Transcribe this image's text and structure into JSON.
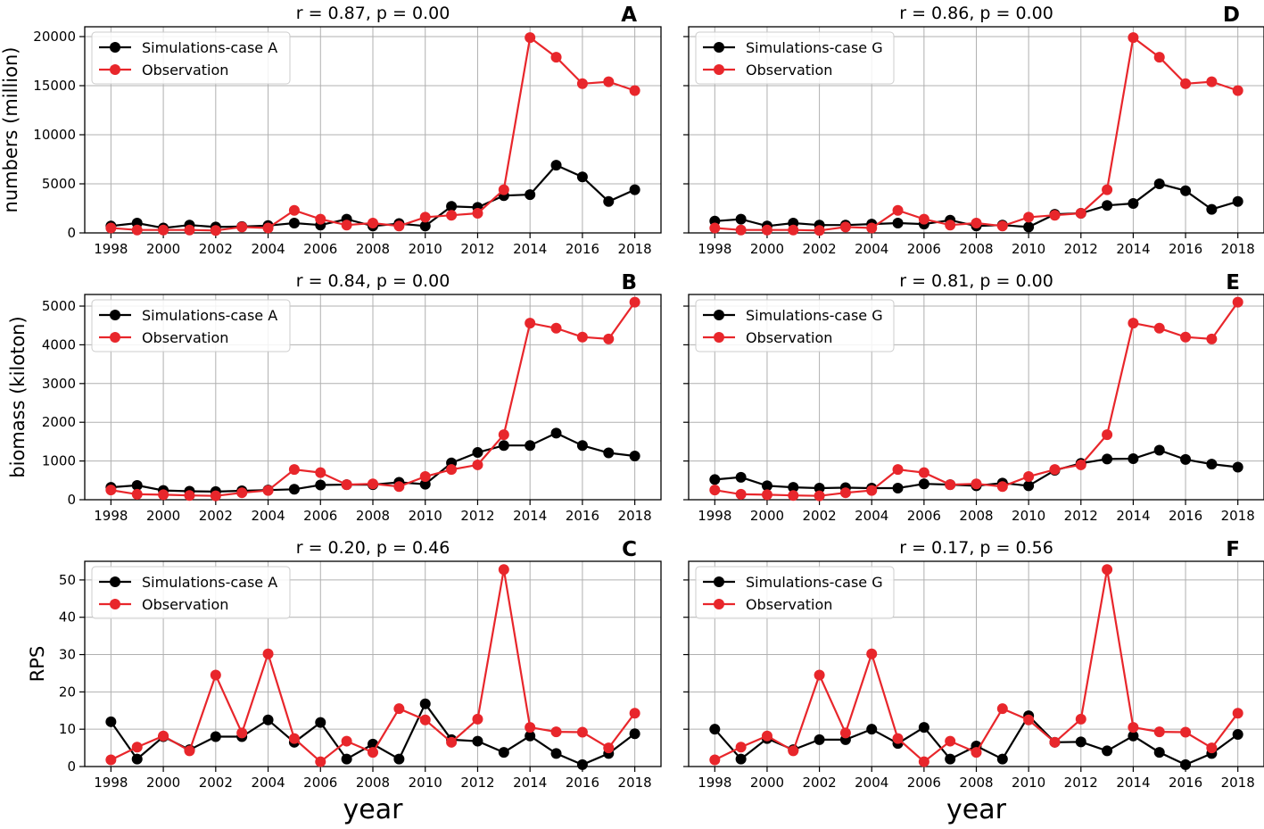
{
  "colors": {
    "simulation": "#000000",
    "observation": "#e8262b",
    "grid": "#b0b0b0",
    "axis": "#000000"
  },
  "chart_data": [
    {
      "type": "line",
      "panel": "A",
      "title": "r = 0.87, p = 0.00",
      "xlabel": "",
      "ylabel": "numbers (million)",
      "ylim": [
        0,
        21000
      ],
      "yticks": [
        "0",
        "5000",
        "10000",
        "15000",
        "20000"
      ],
      "xticks": [
        "1998",
        "2000",
        "2002",
        "2004",
        "2006",
        "2008",
        "2010",
        "2012",
        "2014",
        "2016",
        "2018"
      ],
      "legend_position": "top-left",
      "x": [
        1998,
        1999,
        2000,
        2001,
        2002,
        2003,
        2004,
        2005,
        2006,
        2007,
        2008,
        2009,
        2010,
        2011,
        2012,
        2013,
        2014,
        2015,
        2016,
        2017,
        2018
      ],
      "series": [
        {
          "name": "Simulations-case A",
          "color": "simulation",
          "values": [
            700,
            1000,
            500,
            800,
            600,
            650,
            750,
            1000,
            800,
            1400,
            700,
            950,
            700,
            2700,
            2600,
            3800,
            3900,
            6900,
            5700,
            3200,
            4400
          ]
        },
        {
          "name": "Observation",
          "color": "observation",
          "values": [
            500,
            300,
            300,
            300,
            250,
            600,
            500,
            2300,
            1400,
            800,
            1000,
            700,
            1600,
            1800,
            2000,
            4400,
            19900,
            17900,
            15200,
            15400,
            14500
          ]
        }
      ]
    },
    {
      "type": "line",
      "panel": "D",
      "title": "r = 0.86, p = 0.00",
      "xlabel": "",
      "ylabel": "",
      "ylim": [
        0,
        21000
      ],
      "yticks": [
        "",
        "",
        "",
        "",
        ""
      ],
      "xticks": [
        "1998",
        "2000",
        "2002",
        "2004",
        "2006",
        "2008",
        "2010",
        "2012",
        "2014",
        "2016",
        "2018"
      ],
      "legend_position": "top-left",
      "x": [
        1998,
        1999,
        2000,
        2001,
        2002,
        2003,
        2004,
        2005,
        2006,
        2007,
        2008,
        2009,
        2010,
        2011,
        2012,
        2013,
        2014,
        2015,
        2016,
        2017,
        2018
      ],
      "series": [
        {
          "name": "Simulations-case G",
          "color": "simulation",
          "values": [
            1200,
            1400,
            700,
            1000,
            800,
            800,
            900,
            1000,
            900,
            1300,
            700,
            800,
            600,
            1900,
            2000,
            2800,
            3000,
            5000,
            4300,
            2400,
            3200
          ]
        },
        {
          "name": "Observation",
          "color": "observation",
          "values": [
            500,
            300,
            300,
            300,
            250,
            600,
            500,
            2300,
            1400,
            800,
            1000,
            700,
            1600,
            1800,
            2000,
            4400,
            19900,
            17900,
            15200,
            15400,
            14500
          ]
        }
      ]
    },
    {
      "type": "line",
      "panel": "B",
      "title": "r = 0.84, p = 0.00",
      "xlabel": "",
      "ylabel": "biomass (kiloton)",
      "ylim": [
        0,
        5300
      ],
      "yticks": [
        "0",
        "1000",
        "2000",
        "3000",
        "4000",
        "5000"
      ],
      "xticks": [
        "1998",
        "2000",
        "2002",
        "2004",
        "2006",
        "2008",
        "2010",
        "2012",
        "2014",
        "2016",
        "2018"
      ],
      "legend_position": "top-left",
      "x": [
        1998,
        1999,
        2000,
        2001,
        2002,
        2003,
        2004,
        2005,
        2006,
        2007,
        2008,
        2009,
        2010,
        2011,
        2012,
        2013,
        2014,
        2015,
        2016,
        2017,
        2018
      ],
      "series": [
        {
          "name": "Simulations-case A",
          "color": "simulation",
          "values": [
            320,
            370,
            240,
            220,
            210,
            230,
            250,
            270,
            380,
            390,
            390,
            450,
            400,
            950,
            1220,
            1400,
            1400,
            1720,
            1400,
            1210,
            1130
          ]
        },
        {
          "name": "Observation",
          "color": "observation",
          "values": [
            250,
            140,
            130,
            110,
            100,
            180,
            240,
            780,
            700,
            390,
            410,
            340,
            600,
            780,
            900,
            1680,
            4560,
            4430,
            4200,
            4150,
            5100
          ]
        }
      ]
    },
    {
      "type": "line",
      "panel": "E",
      "title": "r = 0.81, p = 0.00",
      "xlabel": "",
      "ylabel": "",
      "ylim": [
        0,
        5300
      ],
      "yticks": [
        "",
        "",
        "",
        "",
        "",
        ""
      ],
      "xticks": [
        "1998",
        "2000",
        "2002",
        "2004",
        "2006",
        "2008",
        "2010",
        "2012",
        "2014",
        "2016",
        "2018"
      ],
      "legend_position": "top-left",
      "x": [
        1998,
        1999,
        2000,
        2001,
        2002,
        2003,
        2004,
        2005,
        2006,
        2007,
        2008,
        2009,
        2010,
        2011,
        2012,
        2013,
        2014,
        2015,
        2016,
        2017,
        2018
      ],
      "series": [
        {
          "name": "Simulations-case G",
          "color": "simulation",
          "values": [
            520,
            580,
            360,
            320,
            300,
            310,
            300,
            300,
            410,
            390,
            360,
            430,
            360,
            760,
            940,
            1050,
            1060,
            1280,
            1040,
            920,
            840
          ]
        },
        {
          "name": "Observation",
          "color": "observation",
          "values": [
            250,
            140,
            130,
            110,
            100,
            180,
            240,
            780,
            700,
            390,
            410,
            340,
            600,
            780,
            900,
            1680,
            4560,
            4430,
            4200,
            4150,
            5100
          ]
        }
      ]
    },
    {
      "type": "line",
      "panel": "C",
      "title": "r = 0.20, p = 0.46",
      "xlabel": "year",
      "ylabel": "RPS",
      "ylim": [
        0,
        55
      ],
      "yticks": [
        "0",
        "10",
        "20",
        "30",
        "40",
        "50"
      ],
      "xticks": [
        "1998",
        "2000",
        "2002",
        "2004",
        "2006",
        "2008",
        "2010",
        "2012",
        "2014",
        "2016",
        "2018"
      ],
      "legend_position": "top-left",
      "x": [
        1998,
        1999,
        2000,
        2001,
        2002,
        2003,
        2004,
        2005,
        2006,
        2007,
        2008,
        2009,
        2010,
        2011,
        2012,
        2013,
        2014,
        2015,
        2016,
        2017,
        2018
      ],
      "series": [
        {
          "name": "Simulations-case A",
          "color": "simulation",
          "values": [
            12,
            2,
            8,
            4.5,
            8,
            8,
            12.5,
            6.5,
            11.8,
            2,
            6,
            2,
            16.8,
            7.2,
            6.8,
            3.8,
            8.2,
            3.5,
            0.5,
            3.5,
            8.8
          ]
        },
        {
          "name": "Observation",
          "color": "observation",
          "values": [
            1.8,
            5.2,
            8.2,
            4.2,
            24.5,
            9,
            30.2,
            7.5,
            1.3,
            6.8,
            3.8,
            15.5,
            12.5,
            6.5,
            12.7,
            52.8,
            10.5,
            9.3,
            9.2,
            5,
            14.3
          ]
        }
      ]
    },
    {
      "type": "line",
      "panel": "F",
      "title": "r = 0.17, p = 0.56",
      "xlabel": "year",
      "ylabel": "",
      "ylim": [
        0,
        55
      ],
      "yticks": [
        "",
        "",
        "",
        "",
        "",
        ""
      ],
      "xticks": [
        "1998",
        "2000",
        "2002",
        "2004",
        "2006",
        "2008",
        "2010",
        "2012",
        "2014",
        "2016",
        "2018"
      ],
      "legend_position": "top-left",
      "x": [
        1998,
        1999,
        2000,
        2001,
        2002,
        2003,
        2004,
        2005,
        2006,
        2007,
        2008,
        2009,
        2010,
        2011,
        2012,
        2013,
        2014,
        2015,
        2016,
        2017,
        2018
      ],
      "series": [
        {
          "name": "Simulations-case G",
          "color": "simulation",
          "values": [
            10,
            2,
            7.5,
            4.5,
            7.2,
            7.2,
            10,
            6.2,
            10.5,
            2,
            5.5,
            2,
            13.6,
            6.5,
            6.6,
            4.2,
            8.2,
            3.8,
            0.5,
            3.5,
            8.6
          ]
        },
        {
          "name": "Observation",
          "color": "observation",
          "values": [
            1.8,
            5.2,
            8.2,
            4.2,
            24.5,
            9,
            30.2,
            7.5,
            1.3,
            6.8,
            3.8,
            15.5,
            12.5,
            6.5,
            12.7,
            52.8,
            10.5,
            9.3,
            9.2,
            5,
            14.3
          ]
        }
      ]
    }
  ]
}
